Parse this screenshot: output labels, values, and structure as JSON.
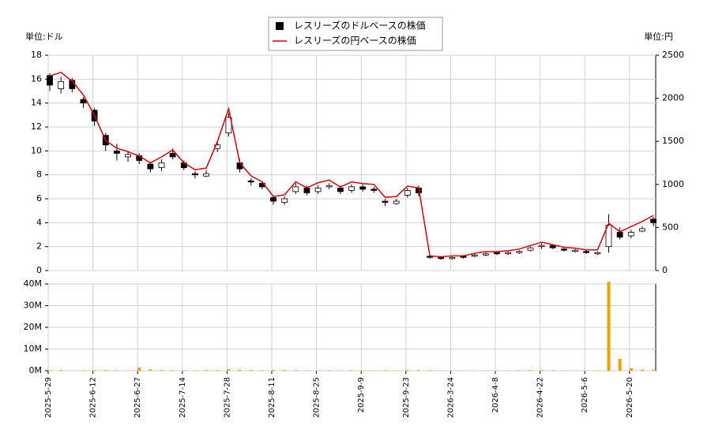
{
  "chart_data": [
    {
      "type": "candlestick",
      "y_label": "単位:ドル",
      "y2_label": "単位:円",
      "ylim": [
        0,
        18
      ],
      "yticks": [
        0,
        2,
        4,
        6,
        8,
        10,
        12,
        14,
        16,
        18
      ],
      "y2lim": [
        0,
        2500
      ],
      "y2ticks": [
        0,
        500,
        1000,
        1500,
        2000,
        2500
      ],
      "grid": true,
      "legend": "top",
      "series": [
        {
          "name": "レスリーズのドルベースの株価",
          "color": "#000000",
          "open": [
            16.3,
            15.2,
            15.9,
            14.3,
            13.4,
            11.3,
            10.0,
            9.5,
            9.6,
            8.9,
            8.6,
            9.8,
            9.0,
            8.1,
            7.9,
            10.2,
            11.5,
            9.0,
            7.5,
            7.3,
            6.1,
            5.7,
            6.6,
            6.9,
            6.6,
            7.0,
            6.9,
            6.7,
            7.0,
            6.8,
            5.8,
            5.6,
            6.3,
            6.9,
            1.2,
            1.1,
            1.0,
            1.2,
            1.2,
            1.3,
            1.5,
            1.4,
            1.5,
            1.7,
            2.0,
            2.1,
            1.8,
            1.6,
            1.6,
            1.4,
            2.0,
            3.2,
            2.9,
            3.3,
            4.3
          ],
          "high": [
            16.5,
            16.2,
            16.1,
            14.5,
            13.6,
            11.5,
            10.6,
            10.0,
            9.8,
            9.1,
            9.3,
            10.2,
            9.2,
            8.3,
            8.4,
            10.8,
            13.2,
            9.3,
            7.7,
            7.4,
            6.2,
            6.2,
            7.3,
            7.1,
            7.1,
            7.3,
            7.1,
            7.2,
            7.2,
            7.0,
            6.0,
            6.0,
            6.9,
            7.1,
            1.3,
            1.2,
            1.2,
            1.3,
            1.4,
            1.5,
            1.6,
            1.6,
            1.7,
            2.0,
            2.3,
            2.2,
            1.9,
            1.8,
            1.7,
            1.6,
            4.7,
            3.6,
            3.4,
            3.7,
            4.5
          ],
          "low": [
            15.0,
            14.8,
            14.9,
            13.6,
            12.1,
            10.0,
            9.2,
            9.1,
            8.9,
            8.2,
            8.3,
            9.3,
            8.4,
            7.7,
            7.8,
            9.9,
            11.2,
            8.2,
            7.1,
            6.8,
            5.5,
            5.5,
            6.4,
            6.3,
            6.4,
            6.8,
            6.4,
            6.5,
            6.6,
            6.5,
            5.4,
            5.5,
            6.1,
            6.2,
            1.0,
            0.9,
            0.9,
            1.0,
            1.1,
            1.2,
            1.3,
            1.3,
            1.4,
            1.6,
            1.8,
            1.8,
            1.6,
            1.5,
            1.4,
            1.3,
            1.5,
            2.6,
            2.7,
            3.2,
            3.7
          ],
          "close": [
            15.5,
            15.8,
            15.2,
            14.0,
            12.5,
            10.5,
            9.8,
            9.7,
            9.2,
            8.5,
            9.0,
            9.5,
            8.6,
            8.0,
            8.1,
            10.5,
            12.8,
            8.5,
            7.4,
            7.0,
            5.8,
            6.0,
            7.0,
            6.5,
            6.9,
            7.1,
            6.6,
            7.0,
            6.8,
            6.7,
            5.7,
            5.8,
            6.7,
            6.5,
            1.1,
            1.0,
            1.1,
            1.1,
            1.3,
            1.4,
            1.4,
            1.5,
            1.6,
            1.9,
            2.1,
            1.9,
            1.7,
            1.7,
            1.5,
            1.5,
            3.8,
            2.8,
            3.2,
            3.5,
            4.0
          ]
        },
        {
          "name": "レスリーズの円ベースの株価",
          "color": "#dd0000",
          "axis": "y2",
          "values": [
            2260,
            2300,
            2200,
            2040,
            1800,
            1510,
            1420,
            1380,
            1330,
            1250,
            1320,
            1400,
            1250,
            1170,
            1190,
            1500,
            1880,
            1250,
            1100,
            1030,
            860,
            880,
            1030,
            960,
            1020,
            1050,
            970,
            1030,
            1010,
            1000,
            850,
            860,
            980,
            960,
            170,
            160,
            170,
            170,
            200,
            220,
            220,
            230,
            250,
            290,
            330,
            300,
            270,
            260,
            240,
            240,
            550,
            450,
            510,
            570,
            640
          ]
        }
      ]
    },
    {
      "type": "bar",
      "color": "#f0a000",
      "ylim": [
        0,
        40000000
      ],
      "yticks": [
        {
          "value": 0,
          "label": "0M"
        },
        {
          "value": 10000000,
          "label": "10M"
        },
        {
          "value": 20000000,
          "label": "20M"
        },
        {
          "value": 30000000,
          "label": "30M"
        },
        {
          "value": 40000000,
          "label": "40M"
        }
      ],
      "categories": [
        "2025-5-29",
        null,
        null,
        null,
        "2025-6-12",
        null,
        null,
        null,
        "2025-6-27",
        null,
        null,
        null,
        "2025-7-14",
        null,
        null,
        null,
        "2025-7-28",
        null,
        null,
        null,
        "2025-8-11",
        null,
        null,
        null,
        "2025-8-25",
        null,
        null,
        null,
        "2025-9-9",
        null,
        null,
        null,
        "2025-9-23",
        null,
        null,
        null,
        "2026-3-24",
        null,
        null,
        null,
        "2026-4-8",
        null,
        null,
        null,
        "2026-4-22",
        null,
        null,
        null,
        "2026-5-6",
        null,
        null,
        null,
        "2026-5-20",
        null,
        null
      ],
      "values": [
        200000,
        300000,
        150000,
        200000,
        250000,
        300000,
        200000,
        150000,
        1500000,
        600000,
        300000,
        250000,
        200000,
        150000,
        300000,
        250000,
        700000,
        400000,
        300000,
        200000,
        350000,
        300000,
        250000,
        200000,
        150000,
        200000,
        150000,
        200000,
        150000,
        150000,
        200000,
        150000,
        300000,
        250000,
        200000,
        150000,
        100000,
        150000,
        100000,
        150000,
        100000,
        150000,
        200000,
        250000,
        300000,
        200000,
        150000,
        100000,
        150000,
        200000,
        41000000,
        5500000,
        1200000,
        500000,
        400000
      ]
    }
  ]
}
